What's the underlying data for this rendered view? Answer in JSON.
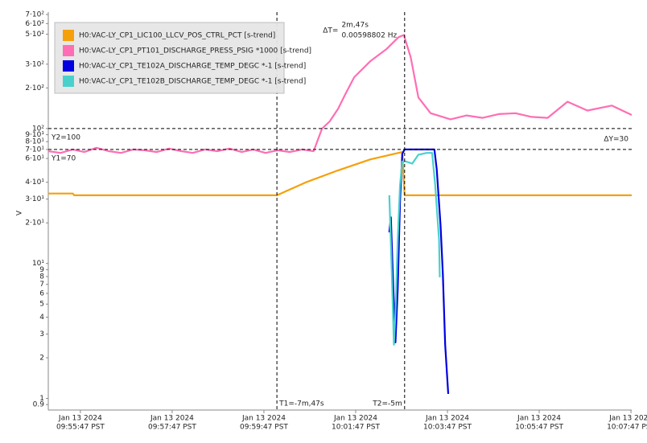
{
  "chart_data": {
    "type": "line",
    "log_scale": true,
    "legend": "upper left",
    "y_label": "V",
    "xlim": [
      "09:55:05",
      "10:07:48"
    ],
    "xticks": [
      {
        "value": "09:55:47",
        "label": [
          "Jan 13 2024",
          "09:55:47 PST"
        ]
      },
      {
        "value": "09:57:47",
        "label": [
          "Jan 13 2024",
          "09:57:47 PST"
        ]
      },
      {
        "value": "09:59:47",
        "label": [
          "Jan 13 2024",
          "09:59:47 PST"
        ]
      },
      {
        "value": "10:01:47",
        "label": [
          "Jan 13 2024",
          "10:01:47 PST"
        ]
      },
      {
        "value": "10:03:47",
        "label": [
          "Jan 13 2024",
          "10:03:47 PST"
        ]
      },
      {
        "value": "10:05:47",
        "label": [
          "Jan 13 2024",
          "10:05:47 PST"
        ]
      },
      {
        "value": "10:07:47",
        "label": [
          "Jan 13 2024",
          "10:07:47 PST"
        ]
      }
    ],
    "ylim": [
      0.82,
      730
    ],
    "yticks": [
      {
        "value": 700,
        "label": "7·10²"
      },
      {
        "value": 600,
        "label": "6·10²"
      },
      {
        "value": 500,
        "label": "5·10²"
      },
      {
        "value": 300,
        "label": "3·10²"
      },
      {
        "value": 200,
        "label": "2·10²"
      },
      {
        "value": 100,
        "label": "10²"
      },
      {
        "value": 90,
        "label": "9·10¹"
      },
      {
        "value": 80,
        "label": "8·10¹"
      },
      {
        "value": 70,
        "label": "7·10¹"
      },
      {
        "value": 60,
        "label": "6·10¹"
      },
      {
        "value": 40,
        "label": "4·10¹"
      },
      {
        "value": 30,
        "label": "3·10¹"
      },
      {
        "value": 20,
        "label": "2·10¹"
      },
      {
        "value": 10,
        "label": "10¹"
      },
      9,
      8,
      7,
      6,
      5,
      4,
      3,
      2,
      1,
      0.9
    ],
    "cursors": [
      {
        "x": "10:00:04",
        "label": "T1=-7m,47s"
      },
      {
        "x": "10:02:51",
        "label": "T2=-5m"
      }
    ],
    "hcursors": [
      {
        "value": 100,
        "label": "Y2=100"
      },
      {
        "value": 70,
        "label": "Y1=70"
      }
    ],
    "delta_t": {
      "label": "ΔT=",
      "lines": [
        "2m,47s",
        "0.00598802 Hz"
      ]
    },
    "delta_y": "ΔY=30",
    "series": [
      {
        "name": "H0:VAC-LY_CP1_LIC100_LLCV_POS_CTRL_PCT [s-trend]",
        "color": "#f5a00a",
        "x": [
          "09:55:05",
          "09:55:37",
          "09:55:39",
          "10:00:04",
          "10:00:42",
          "10:01:24",
          "10:02:06",
          "10:02:48",
          "10:02:51",
          "10:07:48"
        ],
        "values": [
          33,
          33,
          32,
          32,
          40,
          49,
          59,
          67,
          32,
          32
        ]
      },
      {
        "name": "H0:VAC-LY_CP1_PT101_DISCHARGE_PRESS_PSIG *1000 [s-trend]",
        "color": "#ff6eb4",
        "x": [
          "09:55:05",
          "09:55:21",
          "09:55:37",
          "09:55:52",
          "09:56:08",
          "09:56:24",
          "09:56:40",
          "09:56:56",
          "09:57:11",
          "09:57:27",
          "09:57:43",
          "09:57:59",
          "09:58:14",
          "09:58:30",
          "09:58:46",
          "09:59:02",
          "09:59:18",
          "09:59:33",
          "09:59:49",
          "10:00:05",
          "10:00:21",
          "10:00:37",
          "10:00:52",
          "10:01:03",
          "10:01:13",
          "10:01:24",
          "10:01:34",
          "10:01:45",
          "10:02:06",
          "10:02:27",
          "10:02:43",
          "10:02:50",
          "10:02:59",
          "10:03:09",
          "10:03:25",
          "10:03:51",
          "10:04:12",
          "10:04:33",
          "10:04:54",
          "10:05:16",
          "10:05:37",
          "10:05:58",
          "10:06:24",
          "10:06:50",
          "10:07:22",
          "10:07:48"
        ],
        "values": [
          68,
          66,
          70,
          67,
          72,
          68,
          66,
          70,
          69,
          67,
          71,
          68,
          66,
          70,
          68,
          71,
          67,
          70,
          66,
          69,
          67,
          70,
          68,
          100,
          113,
          140,
          182,
          240,
          315,
          387,
          475,
          494,
          337,
          170,
          130,
          117,
          125,
          120,
          128,
          130,
          122,
          120,
          158,
          136,
          148,
          126
        ]
      },
      {
        "name": "H0:VAC-LY_CP1_TE102A_DISCHARGE_TEMP_DEGC *-1 [s-trend]",
        "color": "#0000e0",
        "x": [
          "10:02:31",
          "10:02:33",
          "10:02:37",
          "10:02:39",
          "10:02:42",
          "10:02:45",
          "10:02:48",
          "10:02:51",
          "10:03:30",
          "10:03:33",
          "10:03:38",
          "10:03:41",
          "10:03:44",
          "10:03:48"
        ],
        "values": [
          17,
          22,
          4.9,
          2.6,
          6.4,
          29,
          65,
          70,
          70,
          50,
          19,
          8.4,
          2.5,
          1.08
        ]
      },
      {
        "name": "H0:VAC-LY_CP1_TE102B_DISCHARGE_TEMP_DEGC *-1 [s-trend]",
        "color": "#48d1cc",
        "x": [
          "10:02:31",
          "10:02:34",
          "10:02:37",
          "10:02:39",
          "10:02:42",
          "10:02:45",
          "10:02:48",
          "10:02:53",
          "10:03:01",
          "10:03:09",
          "10:03:20",
          "10:03:27",
          "10:03:31",
          "10:03:36",
          "10:03:37"
        ],
        "values": [
          32,
          9.7,
          2.5,
          4.3,
          14.6,
          38,
          57,
          57,
          55,
          64,
          66,
          66,
          38,
          15,
          7.9
        ]
      }
    ]
  }
}
